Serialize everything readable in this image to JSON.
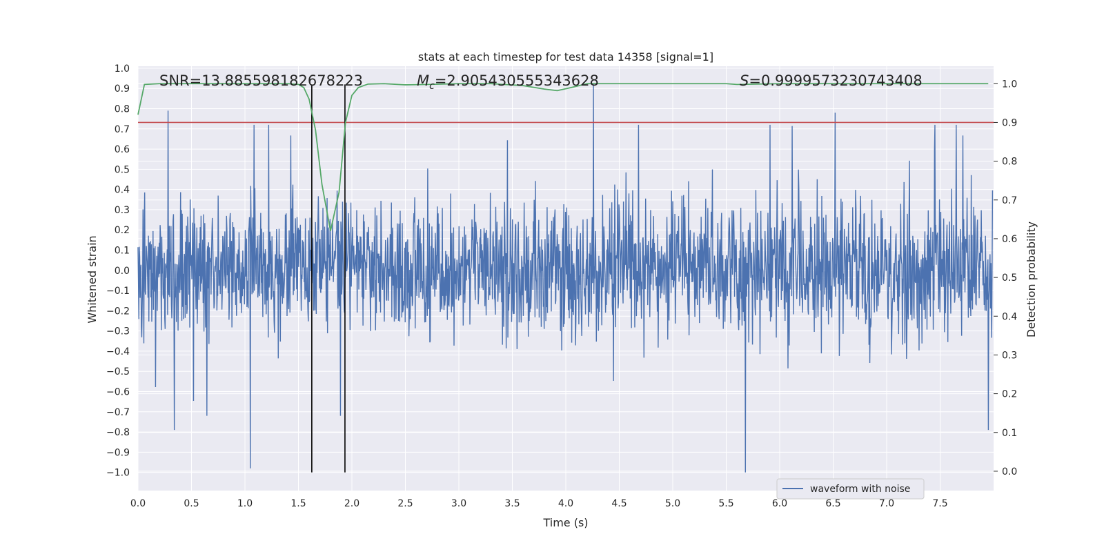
{
  "chart_data": {
    "type": "line",
    "title": "stats at each timestep for test data 14358 [signal=1]",
    "xlabel": "Time (s)",
    "ylabel_left": "Whitened strain",
    "ylabel_right": "Detection probability",
    "xlim": [
      0.0,
      8.0
    ],
    "ylim_left": [
      -1.09,
      1.01
    ],
    "ylim_right": [
      -0.05,
      1.045
    ],
    "x_ticks": [
      "0.0",
      "0.5",
      "1.0",
      "1.5",
      "2.0",
      "2.5",
      "3.0",
      "3.5",
      "4.0",
      "4.5",
      "5.0",
      "5.5",
      "6.0",
      "6.5",
      "7.0",
      "7.5"
    ],
    "y_ticks_left": [
      "1.0",
      "0.9",
      "0.8",
      "0.7",
      "0.6",
      "0.5",
      "0.4",
      "0.3",
      "0.2",
      "0.1",
      "0.0",
      "−0.1",
      "−0.2",
      "−0.3",
      "−0.4",
      "−0.5",
      "−0.6",
      "−0.7",
      "−0.8",
      "−0.9",
      "−1.0"
    ],
    "y_ticks_right": [
      "1.0",
      "0.9",
      "0.8",
      "0.7",
      "0.6",
      "0.5",
      "0.4",
      "0.3",
      "0.2",
      "0.1",
      "0.0"
    ],
    "annotations": {
      "snr": "SNR=13.885598182678223",
      "mc_symbol": "M",
      "mc_subscript": "c",
      "mc_value": "=2.905430555343628",
      "s_symbol": "S",
      "s_value": "=0.9999573230743408"
    },
    "threshold": {
      "value": 0.9,
      "axis": "right",
      "color": "#c44e52"
    },
    "vertical_lines": [
      1.625,
      1.935
    ],
    "vertical_lines_range_left": [
      -1.0,
      0.92
    ],
    "waveform": {
      "name": "waveform with noise",
      "color": "#4c72b0",
      "t_start": 0.0,
      "t_end": 7.99,
      "samples": 2048,
      "seed": 14358,
      "spikes": [
        {
          "t": 1.05,
          "v": -0.98
        },
        {
          "t": 5.68,
          "v": -1.0
        },
        {
          "t": 4.26,
          "v": 0.92
        },
        {
          "t": 0.34,
          "v": -0.79
        },
        {
          "t": 0.28,
          "v": 0.79
        },
        {
          "t": 7.95,
          "v": -0.79
        },
        {
          "t": 6.52,
          "v": 0.78
        },
        {
          "t": 7.45,
          "v": 0.72
        },
        {
          "t": 7.65,
          "v": 0.72
        },
        {
          "t": 5.91,
          "v": 0.72
        },
        {
          "t": 4.68,
          "v": 0.72
        },
        {
          "t": 1.22,
          "v": 0.72
        }
      ]
    },
    "detection_probability": {
      "color": "#55a868",
      "x": [
        0.0,
        0.06,
        0.2,
        0.5,
        1.0,
        1.4,
        1.5,
        1.55,
        1.6,
        1.66,
        1.72,
        1.8,
        1.88,
        1.94,
        2.0,
        2.06,
        2.15,
        2.3,
        2.5,
        2.7,
        3.0,
        3.3,
        3.6,
        3.8,
        3.92,
        4.05,
        4.2,
        4.3,
        4.5,
        5.0,
        5.5,
        5.6,
        6.0,
        6.5,
        7.0,
        7.5,
        7.95
      ],
      "y": [
        0.92,
        0.998,
        1.0,
        1.0,
        1.0,
        1.0,
        0.998,
        0.99,
        0.96,
        0.88,
        0.74,
        0.62,
        0.72,
        0.9,
        0.97,
        0.99,
        0.999,
        1.0,
        0.997,
        0.998,
        1.0,
        1.0,
        0.995,
        0.986,
        0.982,
        0.99,
        1.0,
        1.0,
        1.0,
        1.0,
        1.0,
        0.998,
        1.0,
        1.0,
        1.0,
        1.0,
        1.0
      ]
    },
    "legend": {
      "position": "lower-right",
      "entries": [
        "waveform with noise"
      ]
    },
    "grid": true
  }
}
